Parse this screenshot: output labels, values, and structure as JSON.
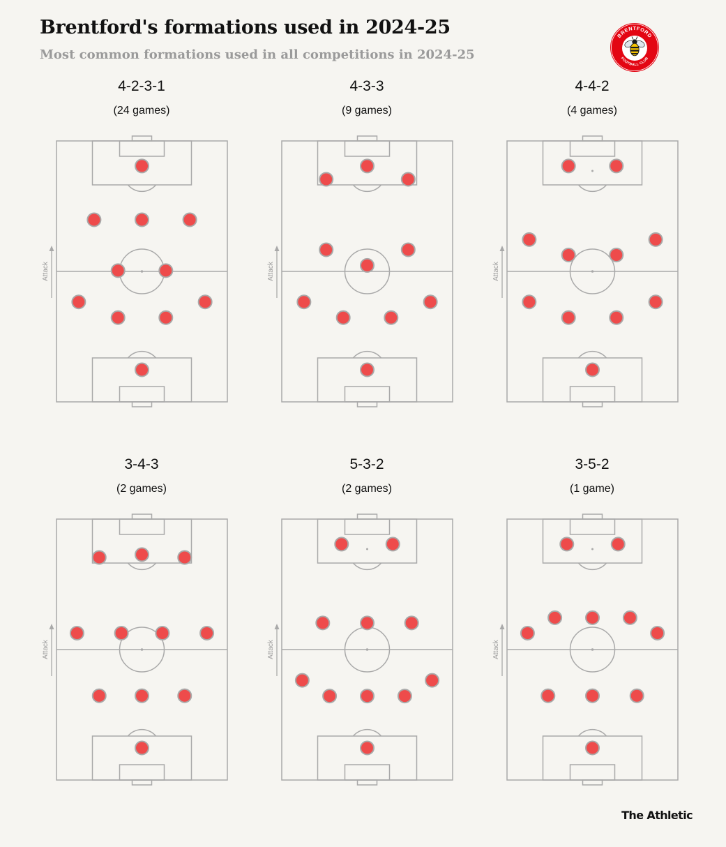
{
  "header": {
    "title": "Brentford's formations used in 2024-25",
    "subtitle": "Most common formations used in all competitions in 2024-25"
  },
  "badge": {
    "arc_text": "BRENTFORD",
    "bottom_text": "FOOTBALL CLUB",
    "colors": {
      "ring": "#e30613",
      "inner": "#ffffff",
      "bee_body": "#f5c400",
      "bee_stripes": "#1a1a1a"
    },
    "icon": "bee-icon"
  },
  "attack_label": "Attack",
  "colors": {
    "background": "#f6f5f1",
    "pitch_lines": "#a9a9a9",
    "player_fill": "#ee4b4b",
    "player_stroke": "#a9a9a9",
    "subtitle": "#9a9a9a"
  },
  "formations": [
    {
      "name": "4-2-3-1",
      "games": "(24 games)",
      "players": [
        [
          0.5,
          0.096
        ],
        [
          0.22,
          0.302
        ],
        [
          0.5,
          0.302
        ],
        [
          0.78,
          0.302
        ],
        [
          0.36,
          0.497
        ],
        [
          0.64,
          0.497
        ],
        [
          0.13,
          0.617
        ],
        [
          0.36,
          0.677
        ],
        [
          0.64,
          0.677
        ],
        [
          0.87,
          0.617
        ],
        [
          0.5,
          0.877
        ]
      ]
    },
    {
      "name": "4-3-3",
      "games": "(9 games)",
      "players": [
        [
          0.26,
          0.147
        ],
        [
          0.5,
          0.096
        ],
        [
          0.74,
          0.147
        ],
        [
          0.26,
          0.417
        ],
        [
          0.5,
          0.477
        ],
        [
          0.74,
          0.417
        ],
        [
          0.13,
          0.617
        ],
        [
          0.36,
          0.677
        ],
        [
          0.64,
          0.677
        ],
        [
          0.87,
          0.617
        ],
        [
          0.5,
          0.877
        ]
      ]
    },
    {
      "name": "4-4-2",
      "games": "(4 games)",
      "players": [
        [
          0.36,
          0.096
        ],
        [
          0.64,
          0.096
        ],
        [
          0.13,
          0.378
        ],
        [
          0.36,
          0.437
        ],
        [
          0.64,
          0.437
        ],
        [
          0.87,
          0.378
        ],
        [
          0.13,
          0.617
        ],
        [
          0.36,
          0.677
        ],
        [
          0.64,
          0.677
        ],
        [
          0.87,
          0.617
        ],
        [
          0.5,
          0.877
        ]
      ]
    },
    {
      "name": "3-4-3",
      "games": "(2 games)",
      "players": [
        [
          0.25,
          0.147
        ],
        [
          0.5,
          0.136
        ],
        [
          0.75,
          0.147
        ],
        [
          0.12,
          0.437
        ],
        [
          0.38,
          0.437
        ],
        [
          0.62,
          0.437
        ],
        [
          0.88,
          0.437
        ],
        [
          0.25,
          0.677
        ],
        [
          0.5,
          0.677
        ],
        [
          0.75,
          0.677
        ],
        [
          0.5,
          0.877
        ]
      ]
    },
    {
      "name": "5-3-2",
      "games": "(2 games)",
      "players": [
        [
          0.35,
          0.096
        ],
        [
          0.65,
          0.096
        ],
        [
          0.24,
          0.398
        ],
        [
          0.5,
          0.398
        ],
        [
          0.76,
          0.398
        ],
        [
          0.12,
          0.618
        ],
        [
          0.28,
          0.678
        ],
        [
          0.5,
          0.678
        ],
        [
          0.72,
          0.678
        ],
        [
          0.88,
          0.618
        ],
        [
          0.5,
          0.877
        ]
      ]
    },
    {
      "name": "3-5-2",
      "games": "(1 game)",
      "players": [
        [
          0.35,
          0.096
        ],
        [
          0.65,
          0.096
        ],
        [
          0.12,
          0.437
        ],
        [
          0.28,
          0.378
        ],
        [
          0.5,
          0.378
        ],
        [
          0.72,
          0.378
        ],
        [
          0.88,
          0.437
        ],
        [
          0.24,
          0.677
        ],
        [
          0.5,
          0.677
        ],
        [
          0.76,
          0.677
        ],
        [
          0.5,
          0.877
        ]
      ]
    }
  ],
  "footer": {
    "brand": "The Athletic"
  }
}
